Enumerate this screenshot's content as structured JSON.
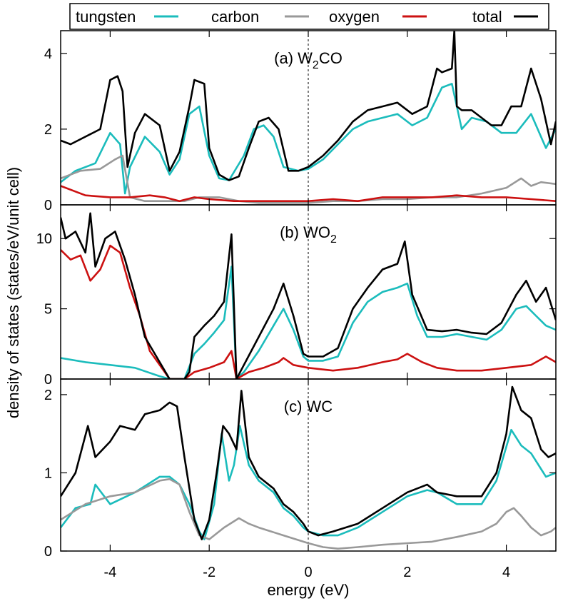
{
  "legend": [
    {
      "label": "tungsten",
      "color": "#1bbcbc"
    },
    {
      "label": "carbon",
      "color": "#999999"
    },
    {
      "label": "oxygen",
      "color": "#cc1111"
    },
    {
      "label": "total",
      "color": "#000000"
    }
  ],
  "xlabel": "energy (eV)",
  "ylabel": "density of states (states/eV/unit cell)",
  "chart_data": [
    {
      "type": "line",
      "title": "(a) W₂CO",
      "title_main": "(a) W",
      "title_sub": "2",
      "title_tail": "CO",
      "xlim": [
        -5,
        5
      ],
      "ylim": [
        0,
        4.6
      ],
      "yticks": [
        0,
        2,
        4
      ],
      "xticks": [
        -4,
        -2,
        0,
        2,
        4
      ],
      "grid": false,
      "legend_position": "top",
      "fermi_level": 0,
      "series": [
        {
          "name": "tungsten",
          "color": "#1bbcbc",
          "x": [
            -5,
            -4.7,
            -4.3,
            -4.0,
            -3.8,
            -3.7,
            -3.6,
            -3.3,
            -3.0,
            -2.8,
            -2.6,
            -2.4,
            -2.2,
            -2.0,
            -1.8,
            -1.6,
            -1.3,
            -1.1,
            -0.9,
            -0.7,
            -0.5,
            -0.2,
            0,
            0.3,
            0.6,
            0.9,
            1.2,
            1.5,
            1.8,
            2.1,
            2.4,
            2.7,
            2.9,
            3.1,
            3.3,
            3.6,
            3.9,
            4.2,
            4.5,
            4.8,
            5
          ],
          "y": [
            0.6,
            0.9,
            1.1,
            1.9,
            1.6,
            0.3,
            1.0,
            1.8,
            1.4,
            0.8,
            1.2,
            2.4,
            2.6,
            1.3,
            0.7,
            0.65,
            1.3,
            2.0,
            2.1,
            1.8,
            1.0,
            0.9,
            0.95,
            1.2,
            1.6,
            2.0,
            2.2,
            2.3,
            2.4,
            2.1,
            2.3,
            3.1,
            3.2,
            2.0,
            2.3,
            2.2,
            1.9,
            1.9,
            2.4,
            1.5,
            2.0
          ]
        },
        {
          "name": "carbon",
          "color": "#999999",
          "x": [
            -5,
            -4.6,
            -4.2,
            -3.9,
            -3.75,
            -3.6,
            -3.3,
            -3.0,
            -2.5,
            -2.2,
            -1.8,
            -1.4,
            -1.0,
            -0.5,
            0,
            0.5,
            1.0,
            1.5,
            2.0,
            2.5,
            3.0,
            3.5,
            4.0,
            4.3,
            4.5,
            4.7,
            5
          ],
          "y": [
            0.7,
            0.9,
            0.95,
            1.2,
            1.3,
            0.2,
            0.1,
            0.1,
            0.1,
            0.2,
            0.2,
            0.1,
            0.05,
            0.05,
            0.05,
            0.1,
            0.1,
            0.15,
            0.15,
            0.2,
            0.2,
            0.3,
            0.45,
            0.7,
            0.5,
            0.6,
            0.55
          ]
        },
        {
          "name": "oxygen",
          "color": "#cc1111",
          "x": [
            -5,
            -4.5,
            -4.0,
            -3.6,
            -3.2,
            -2.9,
            -2.6,
            -2.3,
            -2.0,
            -1.5,
            -1.0,
            -0.5,
            0,
            0.5,
            1.0,
            1.5,
            2.0,
            2.5,
            3.0,
            3.5,
            4.0,
            4.5,
            5
          ],
          "y": [
            0.5,
            0.25,
            0.2,
            0.2,
            0.25,
            0.2,
            0.1,
            0.2,
            0.15,
            0.1,
            0.1,
            0.1,
            0.1,
            0.15,
            0.1,
            0.2,
            0.2,
            0.2,
            0.25,
            0.2,
            0.2,
            0.15,
            0.1
          ]
        },
        {
          "name": "total",
          "color": "#000000",
          "x": [
            -5,
            -4.8,
            -4.5,
            -4.2,
            -4.0,
            -3.85,
            -3.75,
            -3.65,
            -3.5,
            -3.3,
            -3.0,
            -2.8,
            -2.6,
            -2.4,
            -2.3,
            -2.1,
            -2.0,
            -1.8,
            -1.6,
            -1.4,
            -1.2,
            -1.0,
            -0.8,
            -0.6,
            -0.4,
            -0.2,
            0,
            0.3,
            0.6,
            0.9,
            1.2,
            1.5,
            1.8,
            2.1,
            2.4,
            2.6,
            2.7,
            2.9,
            2.95,
            3.0,
            3.1,
            3.3,
            3.5,
            3.7,
            3.9,
            4.1,
            4.3,
            4.5,
            4.7,
            4.9,
            5
          ],
          "y": [
            1.7,
            1.6,
            1.8,
            2.0,
            3.3,
            3.4,
            3.0,
            1.0,
            1.9,
            2.4,
            2.1,
            0.9,
            1.4,
            2.6,
            3.3,
            3.2,
            1.5,
            0.8,
            0.65,
            0.75,
            1.5,
            2.2,
            2.3,
            2.0,
            0.9,
            0.9,
            1.0,
            1.3,
            1.7,
            2.2,
            2.5,
            2.6,
            2.7,
            2.4,
            2.6,
            3.6,
            3.5,
            3.6,
            4.6,
            2.6,
            2.5,
            2.5,
            2.3,
            2.1,
            2.1,
            2.6,
            2.6,
            3.6,
            2.8,
            1.6,
            2.2
          ]
        }
      ]
    },
    {
      "type": "line",
      "title": "(b) WO₂",
      "title_main": "(b) WO",
      "title_sub": "2",
      "title_tail": "",
      "xlim": [
        -5,
        5
      ],
      "ylim": [
        0,
        12.4
      ],
      "yticks": [
        0,
        5,
        10
      ],
      "xticks": [
        -4,
        -2,
        0,
        2,
        4
      ],
      "grid": false,
      "fermi_level": 0,
      "series": [
        {
          "name": "tungsten",
          "color": "#1bbcbc",
          "x": [
            -5,
            -4.5,
            -4.0,
            -3.5,
            -3.0,
            -2.8,
            -2.5,
            -2.3,
            -2.1,
            -1.9,
            -1.7,
            -1.55,
            -1.45,
            -1.3,
            -1.0,
            -0.7,
            -0.5,
            -0.3,
            -0.1,
            0,
            0.3,
            0.6,
            0.9,
            1.2,
            1.5,
            1.8,
            2.0,
            2.2,
            2.4,
            2.7,
            3.0,
            3.3,
            3.6,
            3.9,
            4.2,
            4.4,
            4.6,
            4.8,
            5
          ],
          "y": [
            1.5,
            1.2,
            1.0,
            0.8,
            0.2,
            0,
            0,
            1.8,
            2.5,
            3.3,
            4.2,
            8.0,
            0,
            0.5,
            2.0,
            3.8,
            5.0,
            3.5,
            1.6,
            1.3,
            1.3,
            1.6,
            4.0,
            5.5,
            6.2,
            6.5,
            6.8,
            4.5,
            3.0,
            3.0,
            3.2,
            3.0,
            2.8,
            3.5,
            5.0,
            5.2,
            4.5,
            3.8,
            3.5
          ]
        },
        {
          "name": "oxygen",
          "color": "#cc1111",
          "x": [
            -5,
            -4.8,
            -4.6,
            -4.4,
            -4.2,
            -4.0,
            -3.8,
            -3.6,
            -3.4,
            -3.2,
            -3.0,
            -2.8,
            -2.5,
            -2.3,
            -2.0,
            -1.7,
            -1.55,
            -1.45,
            -1.2,
            -0.9,
            -0.6,
            -0.5,
            -0.3,
            0,
            0.5,
            1.0,
            1.5,
            1.8,
            2.0,
            2.3,
            2.6,
            3.0,
            3.5,
            4.0,
            4.5,
            4.8,
            5
          ],
          "y": [
            9.2,
            8.5,
            8.8,
            7.0,
            7.8,
            9.5,
            9.0,
            6.5,
            4.5,
            2.0,
            1.0,
            0,
            0,
            0.5,
            0.8,
            1.2,
            2.0,
            0,
            0.5,
            0.8,
            1.2,
            1.5,
            1.0,
            0.8,
            0.6,
            0.8,
            1.2,
            1.4,
            1.8,
            1.2,
            0.8,
            0.6,
            0.6,
            0.8,
            1.0,
            1.6,
            1.2
          ]
        },
        {
          "name": "total",
          "color": "#000000",
          "x": [
            -5,
            -4.9,
            -4.7,
            -4.5,
            -4.4,
            -4.3,
            -4.1,
            -3.9,
            -3.7,
            -3.5,
            -3.3,
            -3.0,
            -2.8,
            -2.5,
            -2.4,
            -2.3,
            -2.1,
            -1.9,
            -1.7,
            -1.55,
            -1.45,
            -1.3,
            -1.0,
            -0.7,
            -0.5,
            -0.3,
            -0.1,
            0,
            0.3,
            0.6,
            0.9,
            1.2,
            1.5,
            1.8,
            1.95,
            2.1,
            2.4,
            2.7,
            3.0,
            3.3,
            3.6,
            3.9,
            4.2,
            4.4,
            4.6,
            4.8,
            5
          ],
          "y": [
            11.5,
            10.0,
            10.5,
            9.0,
            11.8,
            8.0,
            10.0,
            10.5,
            8.5,
            6.0,
            3.0,
            1.2,
            0,
            0,
            0.5,
            3.0,
            3.8,
            4.5,
            5.5,
            10.3,
            0,
            1.0,
            3.0,
            5.0,
            6.8,
            4.5,
            1.8,
            1.6,
            1.6,
            2.2,
            5.0,
            6.5,
            7.8,
            8.2,
            9.8,
            6.0,
            3.5,
            3.4,
            3.5,
            3.3,
            3.2,
            4.0,
            6.0,
            7.0,
            5.5,
            6.5,
            4.2
          ]
        }
      ]
    },
    {
      "type": "line",
      "title": "(c) WC",
      "title_main": "(c) WC",
      "title_sub": "",
      "title_tail": "",
      "xlim": [
        -5,
        5
      ],
      "ylim": [
        0,
        2.2
      ],
      "yticks": [
        0,
        1,
        2
      ],
      "xticks": [
        -4,
        -2,
        0,
        2,
        4
      ],
      "grid": false,
      "fermi_level": 0,
      "series": [
        {
          "name": "tungsten",
          "color": "#1bbcbc",
          "x": [
            -5,
            -4.7,
            -4.4,
            -4.3,
            -4.0,
            -3.5,
            -3.0,
            -2.8,
            -2.6,
            -2.4,
            -2.2,
            -2.1,
            -1.9,
            -1.75,
            -1.6,
            -1.5,
            -1.38,
            -1.2,
            -1.0,
            -0.7,
            -0.5,
            -0.3,
            -0.1,
            0,
            0.3,
            0.6,
            1.0,
            1.5,
            2.0,
            2.4,
            2.6,
            3.0,
            3.5,
            3.8,
            4.1,
            4.3,
            4.5,
            4.7,
            4.8,
            5
          ],
          "y": [
            0.3,
            0.55,
            0.6,
            0.85,
            0.6,
            0.75,
            0.95,
            0.95,
            0.85,
            0.6,
            0.25,
            0.15,
            0.6,
            1.5,
            0.9,
            1.1,
            1.6,
            1.1,
            0.9,
            0.75,
            0.55,
            0.45,
            0.3,
            0.25,
            0.2,
            0.2,
            0.3,
            0.5,
            0.7,
            0.78,
            0.75,
            0.6,
            0.6,
            0.9,
            1.55,
            1.35,
            1.25,
            1.05,
            0.95,
            1.0
          ]
        },
        {
          "name": "carbon",
          "color": "#999999",
          "x": [
            -5,
            -4.5,
            -4.0,
            -3.5,
            -3.0,
            -2.8,
            -2.6,
            -2.4,
            -2.2,
            -2.0,
            -1.7,
            -1.4,
            -1.2,
            -1.0,
            -0.5,
            0,
            0.3,
            0.6,
            1.0,
            1.5,
            2.0,
            2.5,
            3.0,
            3.5,
            3.8,
            4.0,
            4.15,
            4.3,
            4.5,
            4.7,
            4.9,
            5
          ],
          "y": [
            0.4,
            0.6,
            0.7,
            0.75,
            0.9,
            0.92,
            0.85,
            0.5,
            0.2,
            0.15,
            0.3,
            0.42,
            0.35,
            0.3,
            0.2,
            0.1,
            0.05,
            0.03,
            0.05,
            0.08,
            0.1,
            0.12,
            0.18,
            0.25,
            0.35,
            0.5,
            0.55,
            0.45,
            0.3,
            0.2,
            0.25,
            0.3
          ]
        },
        {
          "name": "total",
          "color": "#000000",
          "x": [
            -5,
            -4.7,
            -4.45,
            -4.3,
            -4.0,
            -3.8,
            -3.5,
            -3.3,
            -3.0,
            -2.8,
            -2.65,
            -2.5,
            -2.3,
            -2.15,
            -2.0,
            -1.85,
            -1.72,
            -1.6,
            -1.45,
            -1.35,
            -1.2,
            -1.0,
            -0.7,
            -0.5,
            -0.3,
            -0.1,
            0,
            0.2,
            0.5,
            1.0,
            1.5,
            2.0,
            2.4,
            2.6,
            3.0,
            3.5,
            3.8,
            4.0,
            4.12,
            4.3,
            4.5,
            4.7,
            4.85,
            5
          ],
          "y": [
            0.7,
            1.0,
            1.6,
            1.2,
            1.4,
            1.6,
            1.55,
            1.75,
            1.8,
            1.9,
            1.85,
            1.2,
            0.4,
            0.15,
            0.4,
            1.0,
            1.6,
            1.5,
            1.3,
            2.05,
            1.2,
            0.95,
            0.8,
            0.6,
            0.5,
            0.35,
            0.25,
            0.2,
            0.25,
            0.35,
            0.55,
            0.75,
            0.85,
            0.75,
            0.7,
            0.7,
            1.0,
            1.5,
            2.1,
            1.8,
            1.7,
            1.3,
            1.2,
            1.25
          ]
        }
      ]
    }
  ]
}
